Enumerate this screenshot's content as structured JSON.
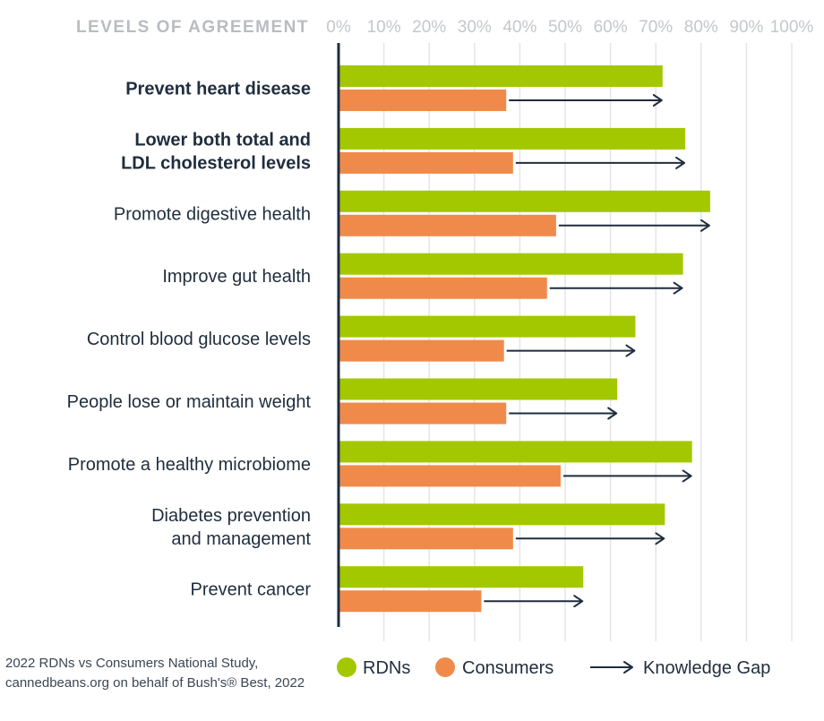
{
  "chart_data": {
    "type": "bar",
    "orientation": "horizontal",
    "title": "LEVELS OF AGREEMENT",
    "x_ticks": [
      "0%",
      "10%",
      "20%",
      "30%",
      "40%",
      "50%",
      "60%",
      "70%",
      "80%",
      "90%",
      "100%"
    ],
    "xlim": [
      0,
      100
    ],
    "grid": true,
    "categories": [
      "Prevent heart disease",
      "Lower both total and\nLDL cholesterol levels",
      "Promote digestive health",
      "Improve gut health",
      "Control blood glucose levels",
      "People lose or maintain weight",
      "Promote a healthy microbiome",
      "Diabetes prevention\nand management",
      "Prevent cancer"
    ],
    "bold_categories": [
      0,
      1
    ],
    "series": [
      {
        "name": "RDNs",
        "color": "#a3c800",
        "values": [
          71.5,
          76.5,
          82,
          76,
          65.5,
          61.5,
          78,
          72,
          54
        ]
      },
      {
        "name": "Consumers",
        "color": "#f08a4b",
        "values": [
          37,
          38.5,
          48,
          46,
          36.5,
          37,
          49,
          38.5,
          31.5
        ]
      }
    ],
    "gap_label": "Knowledge Gap",
    "gap_color": "#1f2d3d",
    "legend_position": "bottom"
  },
  "source": {
    "line1": "2022 RDNs vs Consumers National Study,",
    "line2": "cannedbeans.org on behalf of Bush's® Best, 2022"
  }
}
